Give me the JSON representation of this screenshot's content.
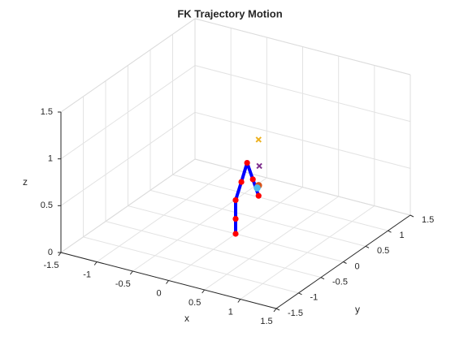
{
  "chart_data": {
    "type": "line3d",
    "title": "FK Trajectory Motion",
    "xlabel": "x",
    "ylabel": "y",
    "zlabel": "z",
    "xlim": [
      -1.5,
      1.5
    ],
    "ylim": [
      -1.5,
      1.5
    ],
    "zlim": [
      0,
      1.5
    ],
    "xticks": [
      -1.5,
      -1,
      -0.5,
      0,
      0.5,
      1,
      1.5
    ],
    "yticks": [
      -1.5,
      -1,
      -0.5,
      0,
      0.5,
      1,
      1.5
    ],
    "zticks": [
      0,
      0.5,
      1,
      1.5
    ],
    "grid": true,
    "series": [
      {
        "color": "#0000ff",
        "marker_color": "#ff0000",
        "marker": "dot",
        "line": true,
        "x": [
          0,
          0,
          0,
          0.08,
          0.16,
          0.24,
          0.32
        ],
        "y": [
          0,
          0,
          0,
          0,
          0,
          0,
          0
        ],
        "z": [
          0,
          0.16,
          0.36,
          0.57,
          0.79,
          0.63,
          0.47
        ]
      },
      {
        "color": "#edb120",
        "marker": "x",
        "line": false,
        "x": [
          0.32
        ],
        "y": [
          0
        ],
        "z": [
          1.07
        ]
      },
      {
        "color": "#7e2f8e",
        "marker": "x",
        "line": false,
        "x": [
          0.33
        ],
        "y": [
          0
        ],
        "z": [
          0.79
        ]
      },
      {
        "color": "#d95319",
        "marker": "circle",
        "line": false,
        "x": [
          0.32
        ],
        "y": [
          0
        ],
        "z": [
          0.58
        ]
      },
      {
        "color": "#4dbeee",
        "marker": "circle",
        "line": false,
        "x": [
          0.3
        ],
        "y": [
          0
        ],
        "z": [
          0.55
        ]
      }
    ]
  }
}
